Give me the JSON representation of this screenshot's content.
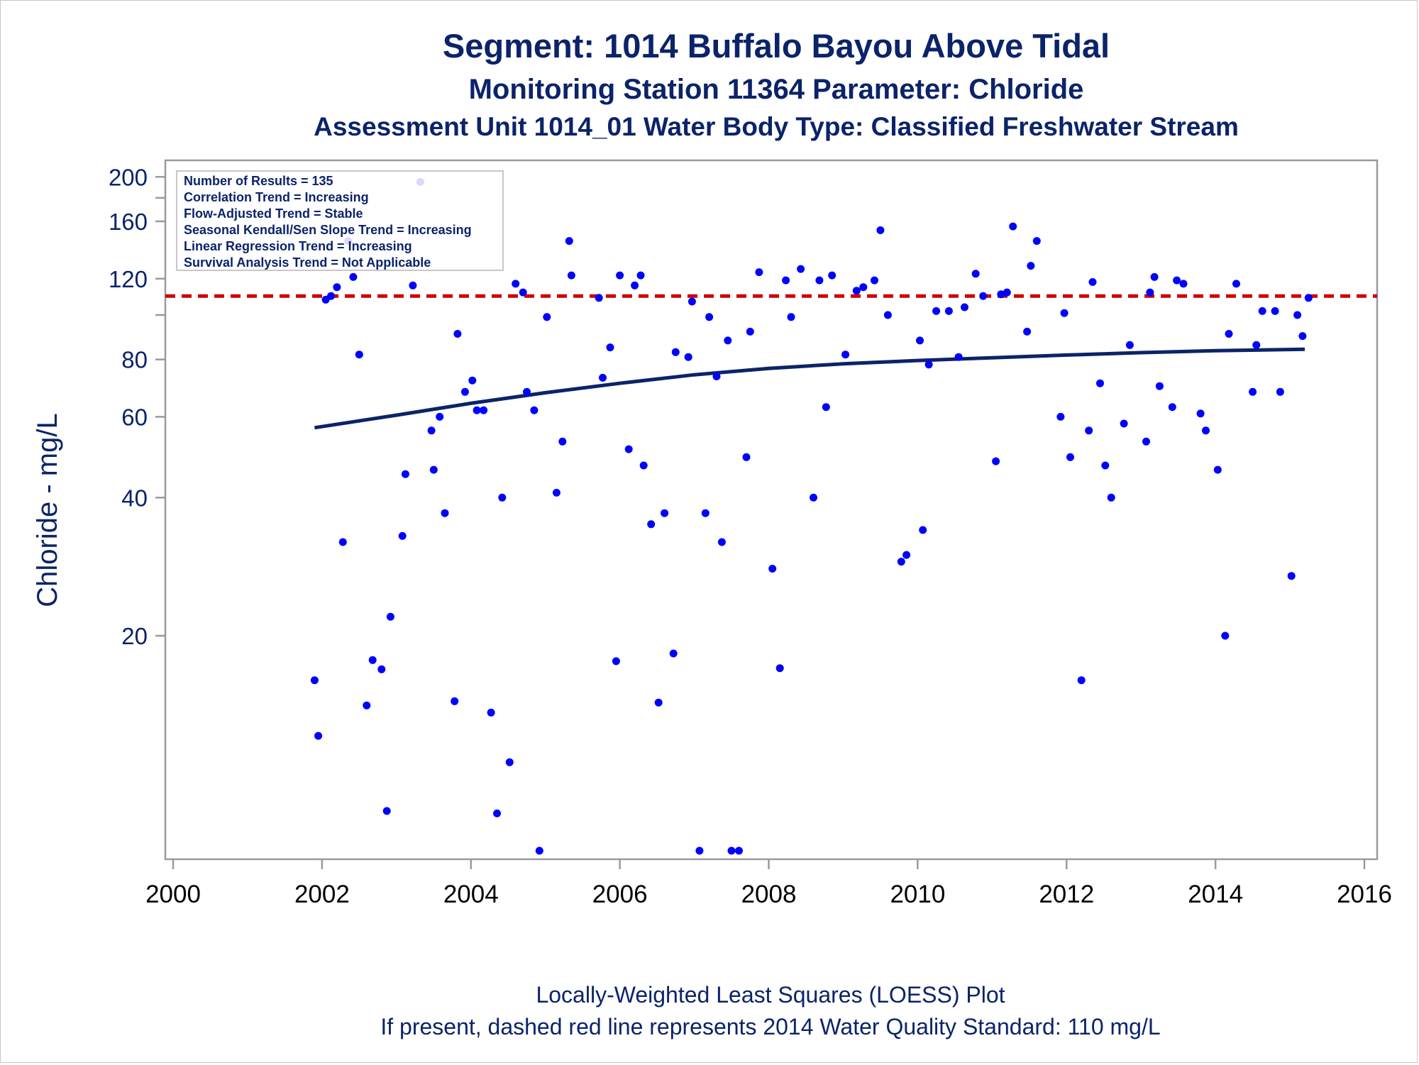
{
  "chart_data": {
    "type": "scatter",
    "title": "Segment: 1014  Buffalo Bayou Above Tidal",
    "subtitle": "Monitoring Station 11364 Parameter: Chloride",
    "subtitle2": "Assessment Unit 1014_01   Water Body Type: Classified Freshwater Stream",
    "ylabel": "Chloride - mg/L",
    "xlabel": "",
    "footnote1": "Locally-Weighted Least Squares (LOESS) Plot",
    "footnote2": "If present, dashed red line represents 2014 Water Quality Standard: 110    mg/L",
    "y_scale": "log",
    "xlim": [
      2000,
      2016
    ],
    "ylim": [
      6.8,
      206
    ],
    "x_ticks": [
      2000,
      2002,
      2004,
      2006,
      2008,
      2010,
      2012,
      2014,
      2016
    ],
    "y_ticks": [
      20,
      40,
      60,
      80,
      120,
      160,
      200
    ],
    "y_minor_ticks": [
      100,
      180
    ],
    "grid": false,
    "standard_line": {
      "value": 110,
      "color": "#cc0000",
      "style": "dashed"
    },
    "stats_box": {
      "placement": "top-left",
      "lines": [
        "Number of Results = 135",
        "Correlation Trend = Increasing",
        "Flow-Adjusted Trend = Stable",
        "Seasonal Kendall/Sen Slope Trend = Increasing",
        "Linear Regression Trend = Increasing",
        "Survival Analysis Trend = Not Applicable"
      ]
    },
    "colors": {
      "points": "#0000ff",
      "loess": "#0b2369",
      "text": "#0b2369",
      "axis": "#999999"
    },
    "loess": {
      "x": [
        2001.9,
        2003,
        2004,
        2005,
        2006,
        2007,
        2008,
        2009,
        2010,
        2011,
        2012,
        2013,
        2014,
        2015.2
      ],
      "y": [
        56.8,
        60.5,
        64.2,
        67.7,
        71,
        74.1,
        76.5,
        78.3,
        79.6,
        80.7,
        81.8,
        82.8,
        83.6,
        84.2
      ]
    },
    "series": [
      {
        "x": [
          2001.9,
          2001.95,
          2002.05,
          2002.12,
          2002.2,
          2002.28,
          2002.35,
          2002.42,
          2002.5,
          2002.6,
          2002.68,
          2002.8,
          2002.87,
          2002.92,
          2003.08,
          2003.12,
          2003.22,
          2003.32,
          2003.47,
          2003.5,
          2003.58,
          2003.65,
          2003.78,
          2003.82,
          2003.92,
          2004.02,
          2004.08,
          2004.17,
          2004.27,
          2004.35,
          2004.42,
          2004.52,
          2004.6,
          2004.7,
          2004.75,
          2004.85,
          2004.92,
          2005.02,
          2005.15,
          2005.23,
          2005.32,
          2005.35,
          2005.72,
          2005.77,
          2005.87,
          2005.95,
          2006.0,
          2006.12,
          2006.2,
          2006.28,
          2006.32,
          2006.42,
          2006.52,
          2006.6,
          2006.72,
          2006.75,
          2006.92,
          2006.97,
          2007.07,
          2007.15,
          2007.2,
          2007.3,
          2007.37,
          2007.45,
          2007.5,
          2007.6,
          2007.7,
          2007.75,
          2007.87,
          2008.05,
          2008.15,
          2008.23,
          2008.3,
          2008.43,
          2008.6,
          2008.68,
          2008.77,
          2008.85,
          2009.03,
          2009.18,
          2009.27,
          2009.42,
          2009.5,
          2009.6,
          2009.78,
          2009.85,
          2010.03,
          2010.07,
          2010.15,
          2010.25,
          2010.42,
          2010.55,
          2010.63,
          2010.78,
          2010.88,
          2011.05,
          2011.12,
          2011.2,
          2011.28,
          2011.47,
          2011.52,
          2011.6,
          2011.92,
          2011.97,
          2012.05,
          2012.2,
          2012.3,
          2012.35,
          2012.45,
          2012.52,
          2012.6,
          2012.77,
          2012.85,
          2013.07,
          2013.12,
          2013.18,
          2013.25,
          2013.42,
          2013.48,
          2013.57,
          2013.8,
          2013.87,
          2014.03,
          2014.13,
          2014.18,
          2014.28,
          2014.5,
          2014.55,
          2014.63,
          2014.8,
          2014.87,
          2015.02,
          2015.1,
          2015.17,
          2015.25
        ],
        "y": [
          16,
          12.1,
          108,
          110,
          115,
          32,
          145,
          121,
          82,
          14.1,
          17.7,
          16.9,
          8.3,
          22,
          33,
          45,
          116,
          195,
          56,
          46,
          60,
          37,
          14.4,
          91,
          68,
          72,
          62,
          62,
          13.6,
          8.2,
          40,
          10.6,
          117,
          112,
          68,
          62,
          6.8,
          99,
          41,
          53,
          145,
          122,
          109,
          73,
          85,
          17.6,
          122,
          51,
          116,
          122,
          47,
          35,
          14.3,
          37,
          18.3,
          83,
          81,
          107,
          6.8,
          37,
          99,
          73.5,
          32,
          88,
          6.8,
          6.8,
          49,
          92,
          124,
          28,
          17,
          119,
          99,
          126,
          40,
          119,
          63,
          122,
          82,
          113,
          115,
          119,
          153,
          100,
          29,
          30,
          88,
          34,
          78,
          102,
          102,
          81,
          104,
          123,
          110,
          48,
          111,
          112,
          156,
          92,
          128,
          145,
          60,
          101,
          49,
          16,
          56,
          118,
          71,
          47,
          40,
          58,
          86,
          53,
          112,
          121,
          70,
          63,
          119,
          117,
          61,
          56,
          46,
          20,
          91,
          117,
          68,
          86,
          102,
          102,
          68,
          27,
          100,
          90,
          109
        ]
      }
    ]
  }
}
